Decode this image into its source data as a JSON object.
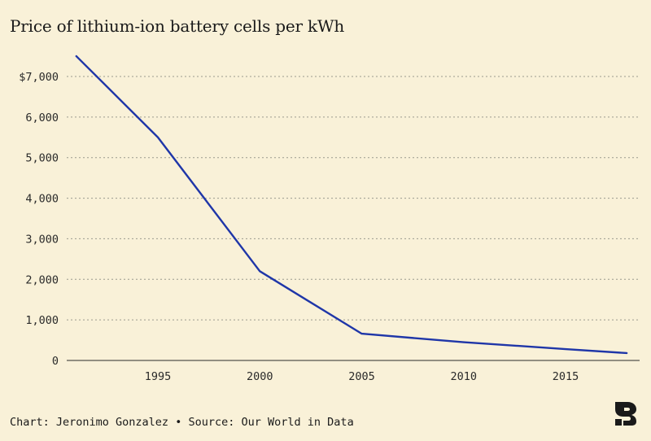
{
  "title": "Price of lithium-ion battery cells per kWh",
  "footer": {
    "chart_credit": "Chart: Jeronimo Gonzalez",
    "separator": "•",
    "source": "Source: Our World in Data"
  },
  "logo_icon": "publication-logo-icon",
  "colors": {
    "background": "#f9f1d8",
    "line": "#1f36a8",
    "grid": "#9a9a8e",
    "text": "#1a1a1a"
  },
  "chart_data": {
    "type": "line",
    "title": "Price of lithium-ion battery cells per kWh",
    "xlabel": "",
    "ylabel": "",
    "x": [
      1991,
      1995,
      2000,
      2005,
      2010,
      2015,
      2018
    ],
    "series": [
      {
        "values": [
          7500,
          5500,
          2200,
          660,
          450,
          280,
          181
        ]
      }
    ],
    "xlim": [
      1991,
      2018
    ],
    "ylim": [
      0,
      7000
    ],
    "xticks": [
      1995,
      2000,
      2005,
      2010,
      2015
    ],
    "xtick_labels": [
      "1995",
      "2000",
      "2005",
      "2010",
      "2015"
    ],
    "yticks": [
      0,
      1000,
      2000,
      3000,
      4000,
      5000,
      6000,
      7000
    ],
    "ytick_labels": [
      "0",
      "1,000",
      "2,000",
      "3,000",
      "4,000",
      "5,000",
      "6,000",
      "$7,000"
    ],
    "grid": true
  }
}
